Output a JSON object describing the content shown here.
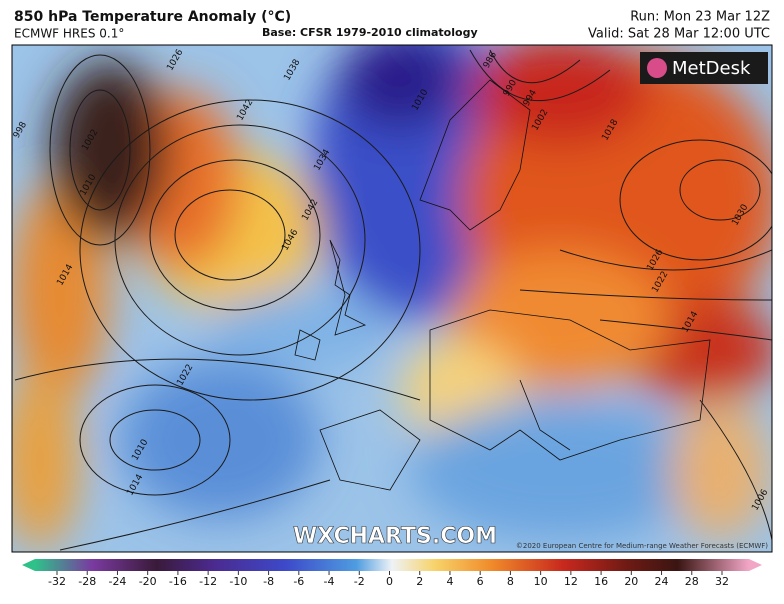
{
  "header": {
    "title": "850 hPa Temperature Anomaly (°C)",
    "model": "ECMWF HRES 0.1°",
    "base": "Base: CFSR 1979-2010 climatology",
    "run": "Run: Mon 23 Mar 12Z",
    "valid": "Valid: Sat 28 Mar 12:00 UTC"
  },
  "map": {
    "logo": "MetDesk",
    "watermark": "WXCHARTS.COM",
    "credit": "©2020 European Centre for Medium-range Weather Forecasts (ECMWF)",
    "isobar_labels": [
      "1002",
      "1010",
      "1014",
      "1026",
      "1038",
      "1042",
      "1034",
      "1046",
      "1042",
      "1022",
      "1010",
      "1014",
      "1010",
      "990",
      "994",
      "1002",
      "1018",
      "1030",
      "1026",
      "1022",
      "1014",
      "1006",
      "998",
      "986"
    ]
  },
  "colorbar": {
    "ticks": [
      -32,
      -28,
      -24,
      -20,
      -16,
      -12,
      -10,
      -8,
      -6,
      -4,
      -2,
      0,
      2,
      4,
      6,
      8,
      10,
      12,
      16,
      20,
      24,
      28,
      32
    ]
  }
}
